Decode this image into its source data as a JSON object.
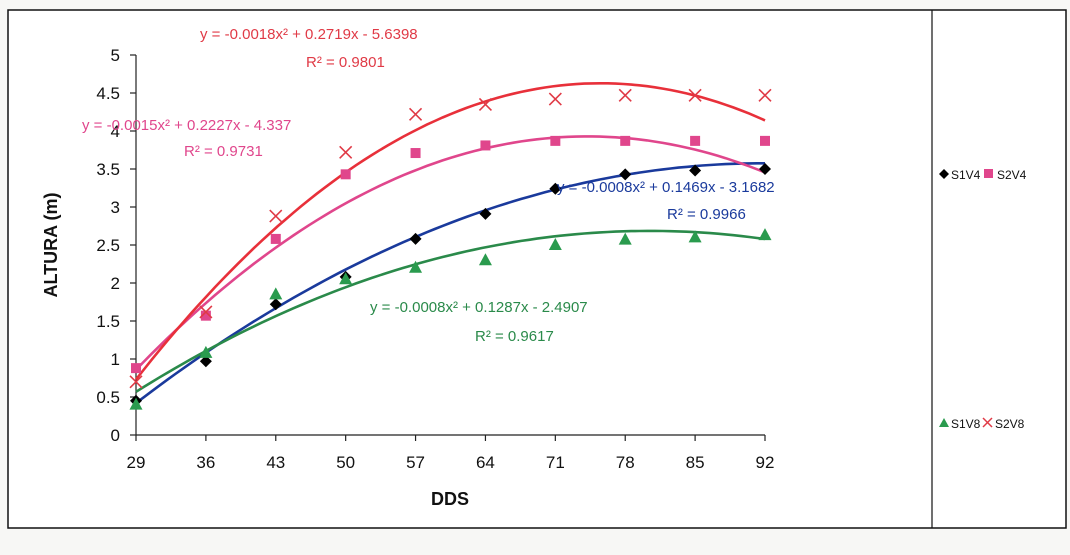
{
  "chart_data": {
    "type": "scatter",
    "title": "",
    "xlabel": "DDS",
    "ylabel": "ALTURA (m)",
    "x": [
      29,
      36,
      43,
      50,
      57,
      64,
      71,
      78,
      85,
      92
    ],
    "x_tick_labels": [
      "29",
      "36",
      "43",
      "50",
      "57",
      "64",
      "71",
      "78",
      "85",
      "92"
    ],
    "y_tick_labels": [
      "0",
      "0.5",
      "1",
      "1.5",
      "2",
      "2.5",
      "3",
      "3.5",
      "4",
      "4.5",
      "5"
    ],
    "ylim": [
      0,
      5
    ],
    "grid": false,
    "legend_position": "right",
    "series": [
      {
        "name": "S1V4",
        "marker": "diamond",
        "color": "#000000",
        "trend_color": "#1a3a9c",
        "values": [
          0.45,
          0.97,
          1.72,
          2.08,
          2.58,
          2.91,
          3.24,
          3.43,
          3.48,
          3.5
        ],
        "trend": {
          "a": -0.0008,
          "b": 0.1469,
          "c": -3.1682
        }
      },
      {
        "name": "S2V4",
        "marker": "square",
        "color": "#e0468c",
        "trend_color": "#e0468c",
        "values": [
          0.88,
          1.57,
          2.58,
          3.43,
          3.71,
          3.81,
          3.87,
          3.87,
          3.87,
          3.87
        ],
        "trend": {
          "a": -0.0015,
          "b": 0.2227,
          "c": -4.337
        }
      },
      {
        "name": "S1V8",
        "marker": "triangle",
        "color": "#2a9b4e",
        "trend_color": "#2a8a4a",
        "values": [
          0.4,
          1.08,
          1.85,
          2.05,
          2.2,
          2.3,
          2.5,
          2.57,
          2.6,
          2.63
        ],
        "trend": {
          "a": -0.0008,
          "b": 0.1287,
          "c": -2.4907
        }
      },
      {
        "name": "S2V8",
        "marker": "x",
        "color": "#e03a46",
        "trend_color": "#e8303a",
        "values": [
          0.7,
          1.62,
          2.88,
          3.72,
          4.22,
          4.35,
          4.42,
          4.47,
          4.47,
          4.47
        ],
        "trend": {
          "a": -0.0018,
          "b": 0.2719,
          "c": -5.6398
        }
      }
    ],
    "annotations": [
      {
        "text": "y = -0.0018x² + 0.2719x - 5.6398",
        "color": "#e03a46"
      },
      {
        "text": "R² = 0.9801",
        "color": "#e03a46"
      },
      {
        "text": "y = -0.0015x² + 0.2227x - 4.337",
        "color": "#e0468c"
      },
      {
        "text": "R² = 0.9731",
        "color": "#e0468c"
      },
      {
        "text": "y = -0.0008x² + 0.1469x - 3.1682",
        "color": "#1a3a9c"
      },
      {
        "text": "R² = 0.9966",
        "color": "#1a3a9c"
      },
      {
        "text": "y = -0.0008x² + 0.1287x - 2.4907",
        "color": "#2a8a4a"
      },
      {
        "text": "R² = 0.9617",
        "color": "#2a8a4a"
      }
    ]
  }
}
